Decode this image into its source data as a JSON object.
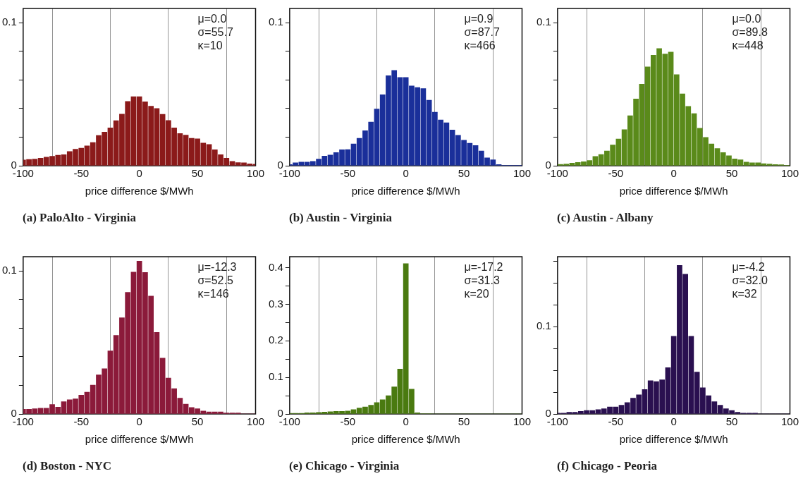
{
  "chart_data": [
    {
      "type": "histogram",
      "title": "(a) PaloAlto - Virginia",
      "xlabel": "price difference $/MWh",
      "color": "#8b1a1a",
      "grid": "x",
      "annotations": [
        "μ=0.0",
        "σ=55.7",
        "κ=10"
      ],
      "xlim": [
        -100,
        100
      ],
      "xticks": [
        -100,
        -50,
        0,
        50,
        100
      ],
      "ylim": [
        0,
        0.11
      ],
      "yticks": [
        0,
        {
          "value": 0.02,
          "label": null
        },
        {
          "value": 0.04,
          "label": null
        },
        {
          "value": 0.06,
          "label": null
        },
        {
          "value": 0.08,
          "label": null
        },
        0.1
      ],
      "bins": [
        -100,
        -97.5,
        -92.5,
        -87.5,
        -82.5,
        -77.5,
        -72.5,
        -67.5,
        -62.5,
        -57.5,
        -52.5,
        -47.5,
        -42.5,
        -37.5,
        -32.5,
        -27.5,
        -22.5,
        -17.5,
        -12.5,
        -7.5,
        -2.5,
        2.5,
        7.5,
        12.5,
        17.5,
        22.5,
        27.5,
        32.5,
        37.5,
        42.5,
        47.5,
        52.5,
        57.5,
        62.5,
        67.5,
        72.5,
        77.5,
        82.5,
        87.5,
        92.5,
        97.5,
        100
      ],
      "values": [
        0.004,
        0.0044,
        0.0046,
        0.0053,
        0.006,
        0.0066,
        0.0073,
        0.0077,
        0.0099,
        0.0115,
        0.0123,
        0.0139,
        0.0163,
        0.0212,
        0.0235,
        0.0265,
        0.0315,
        0.0361,
        0.045,
        0.0483,
        0.0483,
        0.0447,
        0.0417,
        0.04,
        0.036,
        0.0317,
        0.0265,
        0.0225,
        0.0214,
        0.0192,
        0.0188,
        0.0159,
        0.0149,
        0.0112,
        0.0077,
        0.0053,
        0.003,
        0.0022,
        0.002,
        0.0013,
        0.0011
      ]
    },
    {
      "type": "histogram",
      "title": "(b) Austin - Virginia",
      "xlabel": "price difference $/MWh",
      "color": "#1a2f9a",
      "grid": "x",
      "annotations": [
        "μ=0.9",
        "σ=87.7",
        "κ=466"
      ],
      "xlim": [
        -100,
        100
      ],
      "xticks": [
        -100,
        -50,
        0,
        50,
        100
      ],
      "ylim": [
        0,
        0.11
      ],
      "yticks": [
        0,
        {
          "value": 0.02,
          "label": null
        },
        {
          "value": 0.04,
          "label": null
        },
        {
          "value": 0.06,
          "label": null
        },
        {
          "value": 0.08,
          "label": null
        },
        0.1
      ],
      "bins": [
        -100,
        -97.5,
        -92.5,
        -87.5,
        -82.5,
        -77.5,
        -72.5,
        -67.5,
        -62.5,
        -57.5,
        -52.5,
        -47.5,
        -42.5,
        -37.5,
        -32.5,
        -27.5,
        -22.5,
        -17.5,
        -12.5,
        -7.5,
        -2.5,
        2.5,
        7.5,
        12.5,
        17.5,
        22.5,
        27.5,
        32.5,
        37.5,
        42.5,
        47.5,
        52.5,
        57.5,
        62.5,
        67.5,
        72.5,
        77.5,
        82.5,
        87.5,
        92.5,
        97.5,
        100
      ],
      "values": [
        0.0008,
        0.002,
        0.0025,
        0.0025,
        0.003,
        0.0047,
        0.0067,
        0.0075,
        0.0092,
        0.0112,
        0.0113,
        0.0153,
        0.0192,
        0.0245,
        0.0305,
        0.0397,
        0.0497,
        0.063,
        0.0667,
        0.0617,
        0.0617,
        0.0558,
        0.0547,
        0.054,
        0.0458,
        0.0375,
        0.032,
        0.03,
        0.025,
        0.0213,
        0.0178,
        0.0158,
        0.0142,
        0.0103,
        0.0055,
        0.0042,
        0.0008,
        0.0003,
        0.0003,
        0.0003,
        0.0003
      ]
    },
    {
      "type": "histogram",
      "title": "(c) Austin - Albany",
      "xlabel": "price difference $/MWh",
      "color": "#5a8a1a",
      "grid": "x",
      "annotations": [
        "μ=0.0",
        "σ=89.8",
        "κ=448"
      ],
      "xlim": [
        -100,
        100
      ],
      "xticks": [
        -100,
        -50,
        0,
        50,
        100
      ],
      "ylim": [
        0,
        0.11
      ],
      "yticks": [
        0,
        {
          "value": 0.02,
          "label": null
        },
        {
          "value": 0.04,
          "label": null
        },
        {
          "value": 0.06,
          "label": null
        },
        {
          "value": 0.08,
          "label": null
        },
        0.1
      ],
      "bins": [
        -100,
        -95,
        -90,
        -85,
        -80,
        -75,
        -70,
        -65,
        -60,
        -55,
        -50,
        -45,
        -40,
        -35,
        -30,
        -25,
        -20,
        -15,
        -10,
        -5,
        0,
        5,
        10,
        15,
        20,
        25,
        30,
        35,
        40,
        45,
        50,
        55,
        60,
        65,
        70,
        75,
        80,
        85,
        90,
        95,
        100
      ],
      "values": [
        0.001,
        0.0012,
        0.0018,
        0.0023,
        0.0028,
        0.0037,
        0.0065,
        0.0078,
        0.0103,
        0.0145,
        0.0187,
        0.0253,
        0.035,
        0.0467,
        0.057,
        0.0692,
        0.0773,
        0.082,
        0.0782,
        0.0795,
        0.0637,
        0.0503,
        0.0415,
        0.0365,
        0.0262,
        0.0198,
        0.0153,
        0.012,
        0.0092,
        0.007,
        0.0048,
        0.0042,
        0.0025,
        0.002,
        0.002,
        0.0015,
        0.0012,
        0.0008,
        0.0007,
        0.0003
      ]
    },
    {
      "type": "histogram",
      "title": "(d) Boston - NYC",
      "xlabel": "price difference $/MWh",
      "color": "#8b1a3a",
      "grid": "x",
      "annotations": [
        "μ=-12.3",
        "σ=52.5",
        "κ=146"
      ],
      "xlim": [
        -100,
        100
      ],
      "xticks": [
        -100,
        -50,
        0,
        50,
        100
      ],
      "ylim": [
        0,
        0.11
      ],
      "yticks": [
        0,
        {
          "value": 0.02,
          "label": null
        },
        {
          "value": 0.04,
          "label": null
        },
        {
          "value": 0.06,
          "label": null
        },
        {
          "value": 0.08,
          "label": null
        },
        0.1
      ],
      "bins": [
        -100,
        -97.5,
        -92.5,
        -87.5,
        -82.5,
        -77.5,
        -72.5,
        -67.5,
        -62.5,
        -57.5,
        -52.5,
        -47.5,
        -42.5,
        -37.5,
        -32.5,
        -27.5,
        -22.5,
        -17.5,
        -12.5,
        -7.5,
        -2.5,
        2.5,
        7.5,
        12.5,
        17.5,
        22.5,
        27.5,
        32.5,
        37.5,
        42.5,
        47.5,
        52.5,
        57.5,
        62.5,
        67.5,
        72.5,
        77.5,
        82.5,
        87.5,
        92.5,
        97.5,
        100
      ],
      "values": [
        0.0033,
        0.0033,
        0.0036,
        0.004,
        0.004,
        0.0066,
        0.0048,
        0.0086,
        0.0099,
        0.0106,
        0.0132,
        0.0152,
        0.0202,
        0.0273,
        0.0317,
        0.0441,
        0.0549,
        0.0673,
        0.0851,
        0.0992,
        0.1069,
        0.099,
        0.0825,
        0.057,
        0.0391,
        0.0251,
        0.0177,
        0.011,
        0.0069,
        0.0045,
        0.0036,
        0.002,
        0.0015,
        0.0015,
        0.0015,
        0.0007,
        0.0007,
        0.0007,
        0,
        0,
        0
      ]
    },
    {
      "type": "histogram",
      "title": "(e) Chicago - Virginia",
      "xlabel": "price difference $/MWh",
      "color": "#4a7a10",
      "grid": "x",
      "annotations": [
        "μ=-17.2",
        "σ=31.3",
        "κ=20"
      ],
      "xlim": [
        -100,
        100
      ],
      "xticks": [
        -100,
        -50,
        0,
        50,
        100
      ],
      "ylim": [
        0,
        0.43
      ],
      "yticks": [
        0,
        {
          "value": 0.05,
          "label": null
        },
        0.1,
        {
          "value": 0.15,
          "label": null
        },
        0.2,
        {
          "value": 0.25,
          "label": null
        },
        0.3,
        {
          "value": 0.35,
          "label": null
        },
        0.4
      ],
      "bins": [
        -100,
        -97.5,
        -92.5,
        -87.5,
        -82.5,
        -77.5,
        -72.5,
        -67.5,
        -62.5,
        -57.5,
        -52.5,
        -47.5,
        -42.5,
        -37.5,
        -32.5,
        -27.5,
        -22.5,
        -17.5,
        -12.5,
        -7.5,
        -2.5,
        2.5,
        7.5,
        12.5,
        17.5,
        22.5,
        27.5,
        32.5,
        37.5,
        42.5,
        47.5,
        52.5,
        57.5,
        62.5,
        67.5,
        72.5,
        77.5,
        82.5,
        87.5,
        92.5,
        97.5,
        100
      ],
      "values": [
        0.002,
        0.002,
        0.002,
        0.003,
        0.003,
        0.004,
        0.005,
        0.006,
        0.007,
        0.007,
        0.008,
        0.012,
        0.016,
        0.019,
        0.024,
        0.031,
        0.039,
        0.05,
        0.074,
        0.123,
        0.411,
        0.068,
        0.003,
        0.001,
        0.001,
        0,
        0,
        0,
        0,
        0,
        0,
        0,
        0,
        0,
        0,
        0,
        0,
        0,
        0,
        0,
        0
      ]
    },
    {
      "type": "histogram",
      "title": "(f) Chicago - Peoria",
      "xlabel": "price difference $/MWh",
      "color": "#2a1050",
      "grid": "x",
      "annotations": [
        "μ=-4.2",
        "σ=32.0",
        "κ=32"
      ],
      "xlim": [
        -100,
        100
      ],
      "xticks": [
        -100,
        -50,
        0,
        50,
        100
      ],
      "ylim": [
        0,
        0.18
      ],
      "yticks": [
        0,
        {
          "value": 0.025,
          "label": null
        },
        {
          "value": 0.05,
          "label": null
        },
        {
          "value": 0.075,
          "label": null
        },
        0.1,
        {
          "value": 0.125,
          "label": null
        },
        {
          "value": 0.15,
          "label": null
        },
        {
          "value": 0.175,
          "label": null
        }
      ],
      "bins": [
        -100,
        -97.5,
        -92.5,
        -87.5,
        -82.5,
        -77.5,
        -72.5,
        -67.5,
        -62.5,
        -57.5,
        -52.5,
        -47.5,
        -42.5,
        -37.5,
        -32.5,
        -27.5,
        -22.5,
        -17.5,
        -12.5,
        -7.5,
        -2.5,
        2.5,
        7.5,
        12.5,
        17.5,
        22.5,
        27.5,
        32.5,
        37.5,
        42.5,
        47.5,
        52.5,
        57.5,
        62.5,
        67.5,
        72.5,
        77.5,
        82.5,
        87.5,
        92.5,
        97.5,
        100
      ],
      "values": [
        0.001,
        0.001,
        0.002,
        0.002,
        0.003,
        0.004,
        0.004,
        0.005,
        0.006,
        0.008,
        0.008,
        0.01,
        0.013,
        0.018,
        0.022,
        0.028,
        0.038,
        0.037,
        0.039,
        0.053,
        0.089,
        0.17,
        0.16,
        0.089,
        0.048,
        0.03,
        0.021,
        0.014,
        0.01,
        0.006,
        0.004,
        0.002,
        0.001,
        0.001,
        0.001,
        0,
        0,
        0,
        0,
        0,
        0
      ]
    }
  ]
}
